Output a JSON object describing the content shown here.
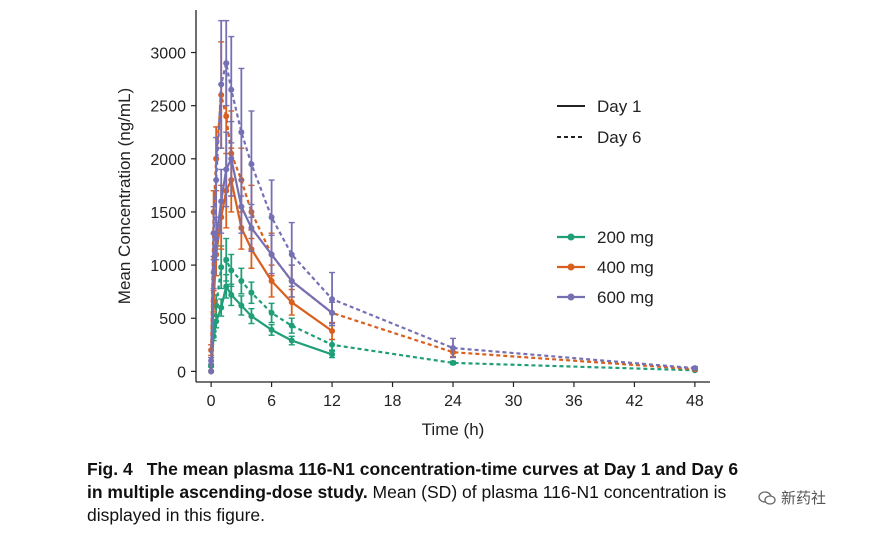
{
  "chart_data": {
    "type": "line",
    "xlabel": "Time (h)",
    "ylabel": "Mean Concentration (ng/mL)",
    "xlim": [
      -1.5,
      49.5
    ],
    "ylim": [
      -100,
      3400
    ],
    "x_ticks": [
      0,
      6,
      12,
      18,
      24,
      30,
      36,
      42,
      48
    ],
    "y_ticks": [
      0,
      500,
      1000,
      1500,
      2000,
      2500,
      3000
    ],
    "legend_linetype": [
      {
        "label": "Day 1",
        "style": "solid"
      },
      {
        "label": "Day 6",
        "style": "dashed"
      }
    ],
    "legend_dose": [
      {
        "label": "200 mg",
        "color": "#1f9e77"
      },
      {
        "label": "400 mg",
        "color": "#d95f1e"
      },
      {
        "label": "600 mg",
        "color": "#7570b3"
      }
    ],
    "series": [
      {
        "name": "200 mg Day 1",
        "dose": "200 mg",
        "day": "Day 1",
        "color": "#1f9e77",
        "style": "solid",
        "x": [
          0,
          0.25,
          0.5,
          1,
          1.5,
          2,
          3,
          4,
          6,
          8,
          12
        ],
        "y": [
          0,
          330,
          470,
          600,
          800,
          720,
          620,
          520,
          390,
          290,
          160
        ],
        "err": [
          0,
          40,
          60,
          80,
          110,
          100,
          90,
          70,
          50,
          40,
          30
        ]
      },
      {
        "name": "200 mg Day 6",
        "dose": "200 mg",
        "day": "Day 6",
        "color": "#1f9e77",
        "style": "dashed",
        "x": [
          0,
          0.25,
          0.5,
          1,
          1.5,
          2,
          3,
          4,
          6,
          8,
          12,
          24,
          48
        ],
        "y": [
          50,
          380,
          620,
          980,
          1050,
          950,
          850,
          740,
          550,
          430,
          250,
          80,
          10
        ],
        "err": [
          10,
          60,
          100,
          200,
          200,
          150,
          120,
          100,
          90,
          70,
          50,
          15,
          5
        ]
      },
      {
        "name": "400 mg Day 1",
        "dose": "400 mg",
        "day": "Day 1",
        "color": "#d95f1e",
        "style": "solid",
        "x": [
          0,
          0.25,
          0.5,
          1,
          1.5,
          2,
          3,
          4,
          6,
          8,
          12
        ],
        "y": [
          0,
          660,
          1100,
          1450,
          1700,
          1800,
          1350,
          1150,
          850,
          650,
          380
        ],
        "err": [
          0,
          100,
          200,
          300,
          350,
          300,
          200,
          180,
          150,
          120,
          80
        ]
      },
      {
        "name": "400 mg Day 6",
        "dose": "400 mg",
        "day": "Day 6",
        "color": "#d95f1e",
        "style": "dashed",
        "x": [
          0,
          0.25,
          0.5,
          1,
          1.5,
          2,
          3,
          4,
          6,
          8,
          12,
          24,
          48
        ],
        "y": [
          200,
          1500,
          2000,
          2600,
          2400,
          2050,
          1800,
          1500,
          1100,
          850,
          550,
          180,
          20
        ],
        "err": [
          50,
          200,
          300,
          500,
          500,
          400,
          300,
          250,
          200,
          150,
          100,
          40,
          10
        ]
      },
      {
        "name": "600 mg Day 1",
        "dose": "600 mg",
        "day": "Day 1",
        "color": "#7570b3",
        "style": "solid",
        "x": [
          0,
          0.25,
          0.5,
          1,
          1.5,
          2,
          3,
          4,
          6,
          8,
          12
        ],
        "y": [
          0,
          930,
          1250,
          1600,
          1900,
          2000,
          1550,
          1350,
          1100,
          850,
          550
        ],
        "err": [
          0,
          150,
          200,
          300,
          350,
          350,
          250,
          220,
          180,
          150,
          100
        ]
      },
      {
        "name": "600 mg Day 6",
        "dose": "600 mg",
        "day": "Day 6",
        "color": "#7570b3",
        "style": "dashed",
        "x": [
          0,
          0.25,
          0.5,
          1,
          1.5,
          2,
          3,
          4,
          6,
          8,
          12,
          24,
          48
        ],
        "y": [
          100,
          1300,
          1800,
          2700,
          2900,
          2650,
          2250,
          1950,
          1450,
          1100,
          680,
          220,
          30
        ],
        "err": [
          30,
          250,
          400,
          600,
          400,
          500,
          600,
          500,
          350,
          300,
          250,
          90,
          15
        ]
      }
    ]
  },
  "caption": {
    "label": "Fig. 4",
    "title": "The mean plasma 116-N1 concentration-time curves at Day 1 and Day 6 in multiple ascending-dose study.",
    "text": " Mean (SD) of plasma 116-N1 concentration is displayed in this figure."
  },
  "watermark": {
    "text": "新药社"
  }
}
